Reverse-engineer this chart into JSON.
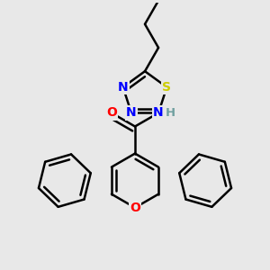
{
  "bg_color": "#e8e8e8",
  "bond_color": "#000000",
  "bond_width": 1.8,
  "dbo": 0.018,
  "atom_colors": {
    "N": "#0000ff",
    "O": "#ff0000",
    "S": "#cccc00",
    "H": "#70a0a0",
    "C": "#000000"
  },
  "font_size": 9.5,
  "fig_size": [
    3.0,
    3.0
  ],
  "dpi": 100
}
